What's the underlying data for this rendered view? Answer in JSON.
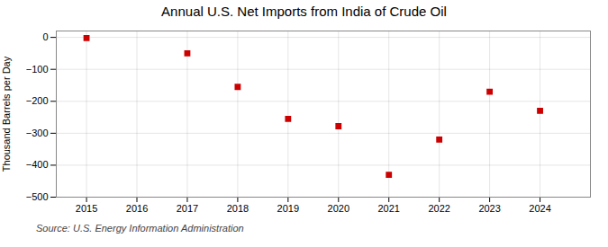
{
  "chart_data": {
    "type": "scatter",
    "title": "Annual U.S. Net Imports from India of Crude Oil",
    "ylabel": "Thousand Barrels per Day",
    "source": "Source: U.S. Energy Information Administration",
    "x": [
      2015,
      2017,
      2018,
      2019,
      2020,
      2021,
      2022,
      2023,
      2024
    ],
    "values": [
      -2,
      -50,
      -155,
      -255,
      -278,
      -430,
      -320,
      -170,
      -230
    ],
    "color": "#cc0000",
    "marker": "square",
    "xlim": [
      2014.4,
      2025.0
    ],
    "xticks": [
      2015,
      2016,
      2017,
      2018,
      2019,
      2020,
      2021,
      2022,
      2023,
      2024
    ],
    "ylim": [
      -500,
      20
    ],
    "yticks": [
      0,
      -100,
      -200,
      -300,
      -400,
      -500
    ],
    "grid": true
  }
}
